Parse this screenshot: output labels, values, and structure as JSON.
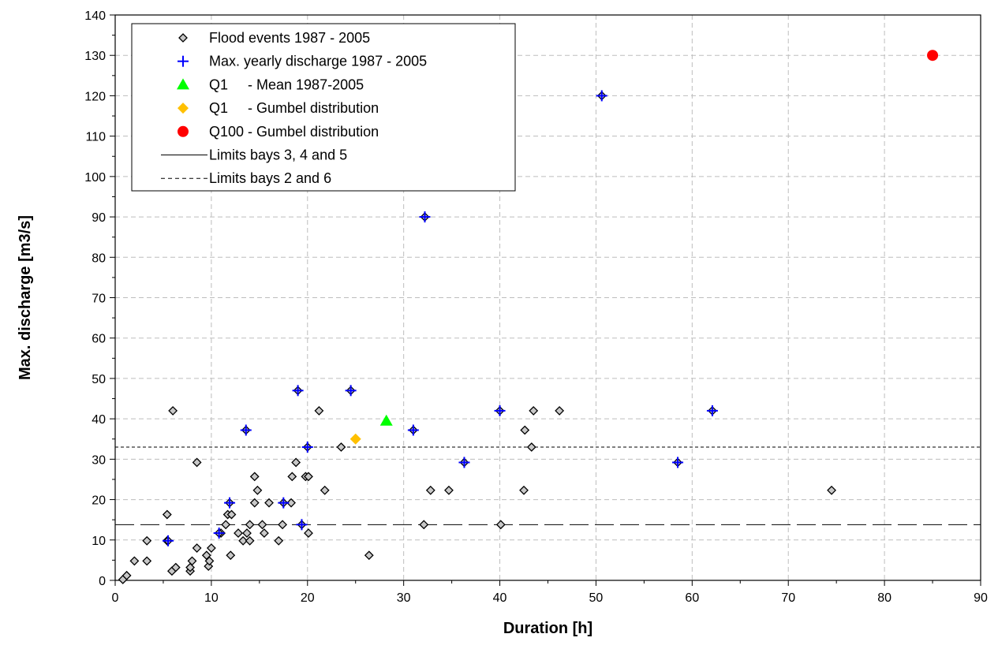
{
  "chart_data": {
    "type": "scatter",
    "xlabel": "Duration [h]",
    "ylabel": "Max. discharge [m3/s]",
    "xlim": [
      0,
      90
    ],
    "ylim": [
      0,
      140
    ],
    "xticks": [
      0,
      10,
      20,
      30,
      40,
      50,
      60,
      70,
      80,
      90
    ],
    "yticks": [
      0,
      10,
      20,
      30,
      40,
      50,
      60,
      70,
      80,
      90,
      100,
      110,
      120,
      130,
      140
    ],
    "grid": true,
    "legend_position": "top-left",
    "series": [
      {
        "name": "Flood events 1987 - 2005",
        "marker": "diamond-open",
        "color": "#808080",
        "points": [
          [
            0.8,
            0.2
          ],
          [
            1.2,
            1.2
          ],
          [
            2.0,
            4.8
          ],
          [
            3.3,
            4.8
          ],
          [
            3.3,
            9.8
          ],
          [
            5.4,
            9.8
          ],
          [
            5.4,
            16.3
          ],
          [
            5.9,
            2.3
          ],
          [
            6.0,
            42.0
          ],
          [
            6.3,
            3.2
          ],
          [
            7.8,
            2.3
          ],
          [
            7.8,
            3.2
          ],
          [
            8.0,
            4.8
          ],
          [
            8.5,
            8.0
          ],
          [
            8.5,
            29.2
          ],
          [
            9.5,
            6.2
          ],
          [
            9.7,
            3.5
          ],
          [
            9.8,
            4.8
          ],
          [
            10.0,
            8.0
          ],
          [
            11.0,
            11.7
          ],
          [
            11.5,
            13.8
          ],
          [
            11.7,
            16.3
          ],
          [
            12.0,
            6.2
          ],
          [
            12.1,
            16.3
          ],
          [
            12.8,
            11.7
          ],
          [
            13.3,
            9.8
          ],
          [
            13.7,
            11.7
          ],
          [
            14.0,
            9.8
          ],
          [
            14.0,
            13.8
          ],
          [
            14.5,
            19.2
          ],
          [
            14.5,
            25.7
          ],
          [
            14.8,
            22.3
          ],
          [
            15.3,
            13.8
          ],
          [
            15.5,
            11.7
          ],
          [
            16.0,
            19.2
          ],
          [
            17.0,
            9.8
          ],
          [
            17.4,
            13.8
          ],
          [
            18.3,
            19.2
          ],
          [
            18.4,
            25.7
          ],
          [
            18.8,
            29.2
          ],
          [
            19.8,
            25.7
          ],
          [
            20.1,
            25.7
          ],
          [
            20.1,
            11.7
          ],
          [
            21.2,
            42.0
          ],
          [
            21.8,
            22.3
          ],
          [
            23.5,
            33.0
          ],
          [
            26.4,
            6.2
          ],
          [
            32.1,
            13.8
          ],
          [
            32.8,
            22.3
          ],
          [
            34.7,
            22.3
          ],
          [
            40.1,
            13.8
          ],
          [
            42.5,
            22.3
          ],
          [
            42.6,
            37.2
          ],
          [
            43.3,
            33.0
          ],
          [
            43.5,
            42.0
          ],
          [
            46.2,
            42.0
          ],
          [
            74.5,
            22.3
          ]
        ]
      },
      {
        "name": "Max. yearly discharge 1987 - 2005",
        "marker": "plus",
        "color": "#0000ff",
        "points": [
          [
            5.5,
            9.8
          ],
          [
            10.8,
            11.7
          ],
          [
            11.9,
            19.2
          ],
          [
            13.6,
            37.2
          ],
          [
            17.5,
            19.2
          ],
          [
            19.0,
            47.0
          ],
          [
            19.4,
            13.8
          ],
          [
            20.0,
            33.0
          ],
          [
            24.5,
            47.0
          ],
          [
            31.0,
            37.2
          ],
          [
            32.2,
            90.0
          ],
          [
            36.3,
            29.2
          ],
          [
            40.0,
            42.0
          ],
          [
            50.6,
            120.0
          ],
          [
            58.5,
            29.2
          ],
          [
            62.1,
            42.0
          ]
        ]
      },
      {
        "name": "Q1     - Mean 1987-2005",
        "marker": "triangle",
        "color": "#00ff00",
        "points": [
          [
            28.2,
            39.5
          ]
        ]
      },
      {
        "name": "Q1     - Gumbel distribution",
        "marker": "diamond-filled",
        "color": "#ffc000",
        "points": [
          [
            25.0,
            35.0
          ]
        ]
      },
      {
        "name": "Q100 - Gumbel distribution",
        "marker": "circle",
        "color": "#ff0000",
        "points": [
          [
            85.0,
            130.0
          ]
        ]
      },
      {
        "name": "Limits bays 3, 4 and 5",
        "type": "hline",
        "style": "long-dash",
        "color": "#000000",
        "y": 13.8
      },
      {
        "name": "Limits bays 2 and 6",
        "type": "hline",
        "style": "short-dash",
        "color": "#000000",
        "y": 33.0
      }
    ],
    "legend": [
      "Flood events 1987 - 2005",
      "Max. yearly discharge 1987 - 2005",
      "Q1     - Mean 1987-2005",
      "Q1     - Gumbel distribution",
      "Q100 - Gumbel distribution",
      "Limits bays 3, 4 and 5",
      "Limits bays 2 and 6"
    ]
  }
}
